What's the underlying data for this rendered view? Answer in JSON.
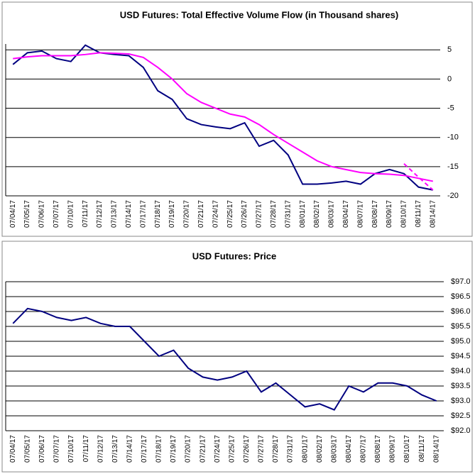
{
  "chart_data": [
    {
      "type": "line",
      "title": "USD Futures: Total Effective Volume Flow (in Thousand shares)",
      "categories": [
        "07/04/17",
        "07/05/17",
        "07/06/17",
        "07/07/17",
        "07/10/17",
        "07/11/17",
        "07/12/17",
        "07/13/17",
        "07/14/17",
        "07/17/17",
        "07/18/17",
        "07/19/17",
        "07/20/17",
        "07/21/17",
        "07/24/17",
        "07/25/17",
        "07/26/17",
        "07/27/17",
        "07/28/17",
        "07/31/17",
        "08/01/17",
        "08/02/17",
        "08/03/17",
        "08/04/17",
        "08/07/17",
        "08/08/17",
        "08/09/17",
        "08/10/17",
        "08/11/17",
        "08/14/17"
      ],
      "series": [
        {
          "color": "#000080",
          "values": [
            2.5,
            4.5,
            4.8,
            3.5,
            3,
            5.8,
            4.5,
            4.2,
            4,
            2,
            -2,
            -3.5,
            -6.8,
            -7.8,
            -8.2,
            -8.5,
            -7.5,
            -11.5,
            -10.5,
            -13,
            -18,
            -18,
            -17.8,
            -17.5,
            -18,
            -16.2,
            -15.5,
            -16.2,
            -18.5,
            -19
          ]
        },
        {
          "color": "#ff00ff",
          "values": [
            3.5,
            3.8,
            4,
            4,
            4,
            4.2,
            4.5,
            4.4,
            4.3,
            3.7,
            2,
            0,
            -2.5,
            -4,
            -5,
            -6,
            -6.5,
            -7.8,
            -9.5,
            -11,
            -12.5,
            -14,
            -15,
            -15.5,
            -16,
            -16.2,
            -16.3,
            -16.5,
            -17,
            -17.5
          ]
        },
        {
          "color": "#ff00ff",
          "linestyle": "dashed",
          "values": [
            null,
            null,
            null,
            null,
            null,
            null,
            null,
            null,
            null,
            null,
            null,
            null,
            null,
            null,
            null,
            null,
            null,
            null,
            null,
            null,
            null,
            null,
            null,
            null,
            null,
            null,
            null,
            -14.5,
            -16.8,
            -19
          ]
        }
      ],
      "ylim": [
        -20,
        6
      ],
      "yticks": [
        -20,
        -15,
        -10,
        -5,
        0,
        5
      ],
      "grid": true,
      "y_axis_side": "right"
    },
    {
      "type": "line",
      "title": "USD Futures: Price",
      "categories": [
        "07/04/17",
        "07/05/17",
        "07/06/17",
        "07/07/17",
        "07/10/17",
        "07/11/17",
        "07/12/17",
        "07/13/17",
        "07/14/17",
        "07/17/17",
        "07/18/17",
        "07/19/17",
        "07/20/17",
        "07/21/17",
        "07/24/17",
        "07/25/17",
        "07/26/17",
        "07/27/17",
        "07/28/17",
        "07/31/17",
        "08/01/17",
        "08/02/17",
        "08/03/17",
        "08/04/17",
        "08/07/17",
        "08/08/17",
        "08/09/17",
        "08/10/17",
        "08/11/17",
        "08/14/17"
      ],
      "series": [
        {
          "color": "#000080",
          "values": [
            95.6,
            96.1,
            96.0,
            95.8,
            95.7,
            95.8,
            95.6,
            95.5,
            95.5,
            95.0,
            94.5,
            94.7,
            94.1,
            93.8,
            93.7,
            93.8,
            94.0,
            93.3,
            93.6,
            93.2,
            92.8,
            92.9,
            92.7,
            93.5,
            93.3,
            93.6,
            93.6,
            93.5,
            93.2,
            93.0
          ]
        }
      ],
      "ylim": [
        92,
        97
      ],
      "yticks": [
        {
          "value": 92,
          "label": "$92.0"
        },
        {
          "value": 92.5,
          "label": "$92.5"
        },
        {
          "value": 93,
          "label": "$93.0"
        },
        {
          "value": 93.5,
          "label": "$93.5"
        },
        {
          "value": 94,
          "label": "$94.0"
        },
        {
          "value": 94.5,
          "label": "$94.5"
        },
        {
          "value": 95,
          "label": "$95.0"
        },
        {
          "value": 95.5,
          "label": "$95.5"
        },
        {
          "value": 96,
          "label": "$96.0"
        },
        {
          "value": 96.5,
          "label": "$96.5"
        },
        {
          "value": 97,
          "label": "$97.0"
        }
      ],
      "grid": true,
      "y_axis_side": "right"
    }
  ]
}
